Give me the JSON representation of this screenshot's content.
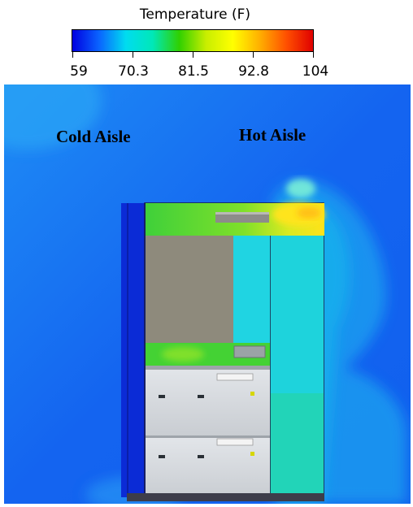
{
  "legend": {
    "title": "Temperature (F)",
    "ticks": [
      "59",
      "70.3",
      "81.5",
      "92.8",
      "104"
    ],
    "gradient": [
      "#0000e0",
      "#0a64ff",
      "#00dcf0",
      "#00e8b8",
      "#30d000",
      "#c8ee00",
      "#ffff00",
      "#ffb000",
      "#ff5000",
      "#e00000"
    ]
  },
  "labels": {
    "cold_aisle": "Cold Aisle",
    "hot_aisle": "Hot Aisle"
  },
  "colors": {
    "field_base": "#1460f2",
    "cold_wall": "#0a2ad8",
    "hot_zone": "#17d6e0",
    "warm_zone": "#3fd33a",
    "hot_spot": "#ffdf1a",
    "server_panel": "#8e8a7c",
    "server_chassis": "#d4d8dc",
    "rack_base": "#3d3d4a"
  }
}
